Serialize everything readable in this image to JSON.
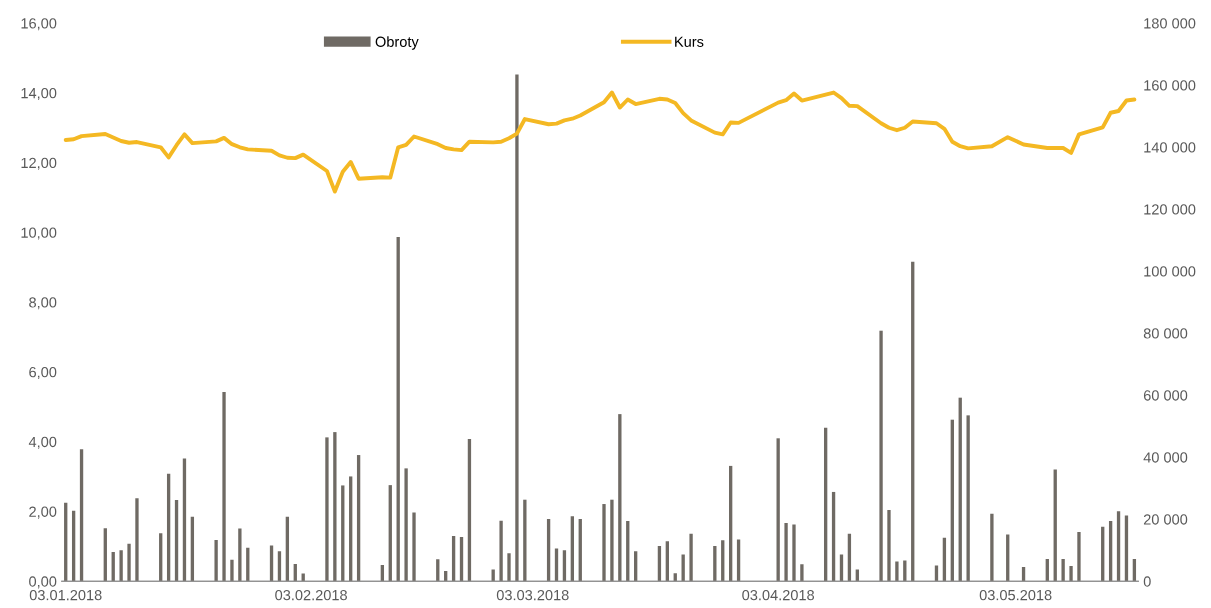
{
  "chart_data": {
    "type": "bar",
    "x": [
      "2018-01-03",
      "2018-01-04",
      "2018-01-05",
      "2018-01-08",
      "2018-01-09",
      "2018-01-10",
      "2018-01-11",
      "2018-01-12",
      "2018-01-15",
      "2018-01-16",
      "2018-01-17",
      "2018-01-18",
      "2018-01-19",
      "2018-01-22",
      "2018-01-23",
      "2018-01-24",
      "2018-01-25",
      "2018-01-26",
      "2018-01-29",
      "2018-01-30",
      "2018-01-31",
      "2018-02-01",
      "2018-02-02",
      "2018-02-05",
      "2018-02-06",
      "2018-02-07",
      "2018-02-08",
      "2018-02-09",
      "2018-02-12",
      "2018-02-13",
      "2018-02-14",
      "2018-02-15",
      "2018-02-16",
      "2018-02-19",
      "2018-02-20",
      "2018-02-21",
      "2018-02-22",
      "2018-02-23",
      "2018-02-26",
      "2018-02-27",
      "2018-02-28",
      "2018-03-01",
      "2018-03-02",
      "2018-03-05",
      "2018-03-06",
      "2018-03-07",
      "2018-03-08",
      "2018-03-09",
      "2018-03-12",
      "2018-03-13",
      "2018-03-14",
      "2018-03-15",
      "2018-03-16",
      "2018-03-19",
      "2018-03-20",
      "2018-03-21",
      "2018-03-22",
      "2018-03-23",
      "2018-03-26",
      "2018-03-27",
      "2018-03-28",
      "2018-03-29",
      "2018-04-03",
      "2018-04-04",
      "2018-04-05",
      "2018-04-06",
      "2018-04-09",
      "2018-04-10",
      "2018-04-11",
      "2018-04-12",
      "2018-04-13",
      "2018-04-16",
      "2018-04-17",
      "2018-04-18",
      "2018-04-19",
      "2018-04-20",
      "2018-04-23",
      "2018-04-24",
      "2018-04-25",
      "2018-04-26",
      "2018-04-27",
      "2018-04-30",
      "2018-05-02",
      "2018-05-04",
      "2018-05-07",
      "2018-05-08",
      "2018-05-09",
      "2018-05-10",
      "2018-05-11",
      "2018-05-14",
      "2018-05-15",
      "2018-05-16",
      "2018-05-17",
      "2018-05-18"
    ],
    "series": [
      {
        "name": "Obroty",
        "axis": "y2",
        "color": "#6f6a64",
        "values": [
          25300,
          22700,
          42600,
          17100,
          9400,
          10000,
          12100,
          26800,
          15500,
          34700,
          26200,
          39600,
          20800,
          13300,
          61000,
          6900,
          17000,
          10800,
          11500,
          9700,
          20800,
          5600,
          2500,
          46400,
          48100,
          30900,
          33800,
          40700,
          5200,
          31000,
          111000,
          36400,
          22200,
          7100,
          3300,
          14600,
          14300,
          45900,
          3800,
          19500,
          9000,
          163400,
          26300,
          20100,
          10600,
          10000,
          21000,
          20100,
          24900,
          26300,
          53900,
          19400,
          9700,
          11400,
          12900,
          2600,
          8600,
          15300,
          11400,
          13200,
          37200,
          13500,
          46100,
          18800,
          18300,
          5500,
          49500,
          28800,
          8600,
          15300,
          3800,
          80800,
          23000,
          6400,
          6700,
          103000,
          5100,
          14000,
          52100,
          59200,
          53500,
          21800,
          15100,
          4600,
          7200,
          36000,
          7200,
          4900,
          15900,
          17600,
          19400,
          22600,
          21200,
          7200
        ]
      },
      {
        "name": "Kurs",
        "type": "line",
        "axis": "y",
        "color": "#f4b823",
        "values": [
          12.65,
          12.67,
          12.76,
          12.82,
          12.72,
          12.62,
          12.57,
          12.59,
          12.44,
          12.15,
          12.5,
          12.81,
          12.56,
          12.61,
          12.71,
          12.53,
          12.44,
          12.38,
          12.34,
          12.21,
          12.14,
          12.13,
          12.23,
          11.76,
          11.17,
          11.74,
          12.02,
          11.54,
          11.58,
          11.57,
          12.44,
          12.51,
          12.75,
          12.53,
          12.42,
          12.38,
          12.36,
          12.6,
          12.58,
          12.6,
          12.7,
          12.83,
          13.25,
          13.1,
          13.12,
          13.21,
          13.26,
          13.35,
          13.73,
          14.01,
          13.58,
          13.81,
          13.68,
          13.83,
          13.81,
          13.71,
          13.42,
          13.21,
          12.86,
          12.81,
          13.15,
          13.14,
          13.72,
          13.79,
          13.98,
          13.78,
          13.95,
          14.01,
          13.85,
          13.63,
          13.62,
          13.13,
          13.0,
          12.93,
          13.0,
          13.18,
          13.13,
          12.97,
          12.6,
          12.47,
          12.41,
          12.47,
          12.73,
          12.52,
          12.42,
          12.42,
          12.42,
          12.28,
          12.81,
          13.01,
          13.43,
          13.48,
          13.78,
          13.81
        ]
      }
    ],
    "xlim": [
      "2018-01-02T12:00",
      "2018-05-18T12:00"
    ],
    "xticks": [
      {
        "value": "2018-01-03",
        "label": "03.01.2018"
      },
      {
        "value": "2018-02-03",
        "label": "03.02.2018"
      },
      {
        "value": "2018-03-03",
        "label": "03.03.2018"
      },
      {
        "value": "2018-04-03",
        "label": "03.04.2018"
      },
      {
        "value": "2018-05-03",
        "label": "03.05.2018"
      }
    ],
    "ylim": [
      0,
      16
    ],
    "yticks": [
      {
        "value": 0,
        "label": "0,00"
      },
      {
        "value": 2,
        "label": "2,00"
      },
      {
        "value": 4,
        "label": "4,00"
      },
      {
        "value": 6,
        "label": "6,00"
      },
      {
        "value": 8,
        "label": "8,00"
      },
      {
        "value": 10,
        "label": "10,00"
      },
      {
        "value": 12,
        "label": "12,00"
      },
      {
        "value": 14,
        "label": "14,00"
      },
      {
        "value": 16,
        "label": "16,00"
      }
    ],
    "y2lim": [
      0,
      180000
    ],
    "y2ticks": [
      0,
      {
        "value": 20000,
        "label": "20 000"
      },
      {
        "value": 40000,
        "label": "40 000"
      },
      {
        "value": 60000,
        "label": "60 000"
      },
      {
        "value": 80000,
        "label": "80 000"
      },
      {
        "value": 100000,
        "label": "100 000"
      },
      {
        "value": 120000,
        "label": "120 000"
      },
      {
        "value": 140000,
        "label": "140 000"
      },
      {
        "value": 160000,
        "label": "160 000"
      },
      {
        "value": 180000,
        "label": "180 000"
      }
    ],
    "legend": "top",
    "grid": false
  }
}
